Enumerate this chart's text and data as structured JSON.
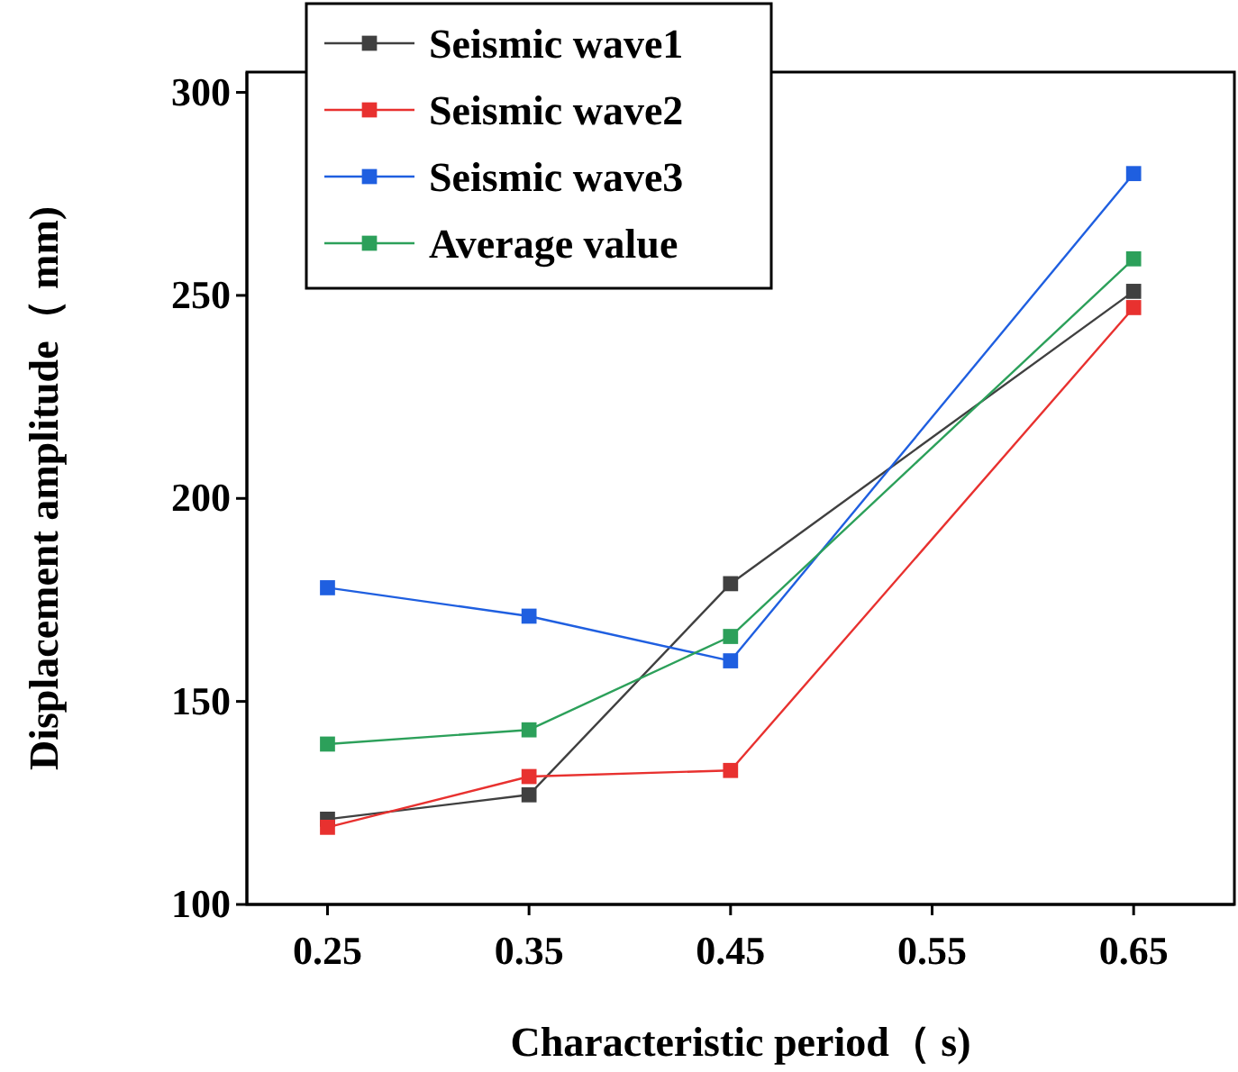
{
  "chart_data": {
    "type": "line",
    "xlabel": "Characteristic period（ s)",
    "ylabel": "Displacement amplitude（ mm)",
    "x": [
      0.25,
      0.35,
      0.45,
      0.65
    ],
    "xlim": [
      0.21,
      0.7
    ],
    "xticks": [
      0.25,
      0.35,
      0.45,
      0.55,
      0.65
    ],
    "ylim": [
      100,
      305
    ],
    "yticks": [
      100,
      150,
      200,
      250,
      300
    ],
    "marker": "square",
    "line_style": "solid",
    "grid": false,
    "legend": "top left",
    "series": [
      {
        "name": "Seismic wave1",
        "color": "#404040",
        "values": [
          121,
          127,
          179,
          251
        ]
      },
      {
        "name": "Seismic wave2",
        "color": "#e8312f",
        "values": [
          119,
          131.5,
          133,
          247
        ]
      },
      {
        "name": "Seismic wave3",
        "color": "#1f5fe0",
        "values": [
          178,
          171,
          160,
          280
        ]
      },
      {
        "name": "Average value",
        "color": "#2ca05a",
        "values": [
          139.5,
          143,
          166,
          259
        ]
      }
    ]
  }
}
